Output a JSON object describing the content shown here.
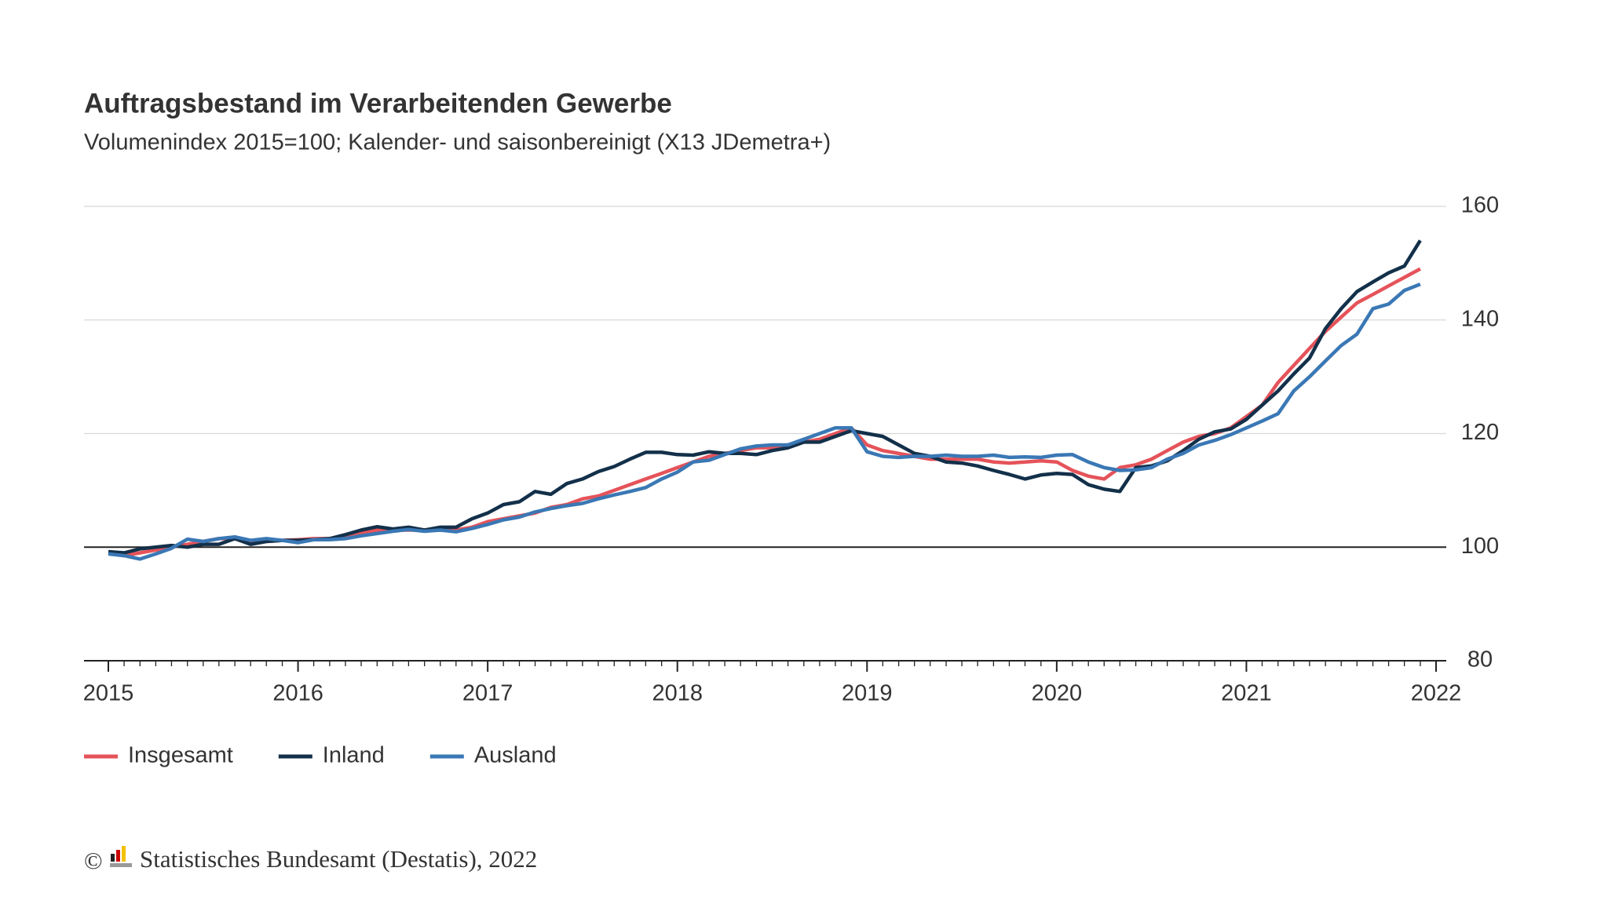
{
  "chart_data": {
    "type": "line",
    "title": "Auftragsbestand im Verarbeitenden Gewerbe",
    "subtitle": "Volumenindex 2015=100; Kalender- und saisonbereinigt (X13 JDemetra+)",
    "x": [
      2015,
      2015.083,
      2015.167,
      2015.25,
      2015.333,
      2015.417,
      2015.5,
      2015.583,
      2015.667,
      2015.75,
      2015.833,
      2015.917,
      2016,
      2016.083,
      2016.167,
      2016.25,
      2016.333,
      2016.417,
      2016.5,
      2016.583,
      2016.667,
      2016.75,
      2016.833,
      2016.917,
      2017,
      2017.083,
      2017.167,
      2017.25,
      2017.333,
      2017.417,
      2017.5,
      2017.583,
      2017.667,
      2017.75,
      2017.833,
      2017.917,
      2018,
      2018.083,
      2018.167,
      2018.25,
      2018.333,
      2018.417,
      2018.5,
      2018.583,
      2018.667,
      2018.75,
      2018.833,
      2018.917,
      2019,
      2019.083,
      2019.167,
      2019.25,
      2019.333,
      2019.417,
      2019.5,
      2019.583,
      2019.667,
      2019.75,
      2019.833,
      2019.917,
      2020,
      2020.083,
      2020.167,
      2020.25,
      2020.333,
      2020.417,
      2020.5,
      2020.583,
      2020.667,
      2020.75,
      2020.833,
      2020.917,
      2021,
      2021.083,
      2021.167,
      2021.25,
      2021.333,
      2021.417,
      2021.5,
      2021.583,
      2021.667,
      2021.75,
      2021.833,
      2021.917
    ],
    "series": [
      {
        "name": "Insgesamt",
        "color": "#e5535a",
        "values": [
          99,
          98.5,
          99,
          99.5,
          100,
          100.5,
          101,
          101.5,
          101.5,
          101,
          101,
          101.2,
          101.3,
          101.5,
          101.5,
          102,
          102.5,
          103,
          103,
          103,
          103,
          103,
          103,
          103.5,
          104.5,
          105,
          105.5,
          106,
          107,
          107.5,
          108.5,
          109,
          110,
          111,
          112,
          113,
          114,
          115,
          116,
          116.5,
          117,
          117.5,
          117.5,
          118,
          118.5,
          119,
          120,
          121,
          118,
          117,
          116.5,
          116,
          115.5,
          115.5,
          115.5,
          115.5,
          115,
          114.8,
          115,
          115.2,
          115,
          113.5,
          112.5,
          112,
          114,
          114.5,
          115.5,
          117,
          118.5,
          119.5,
          120,
          121,
          123,
          125,
          129,
          132,
          135,
          138,
          140.5,
          143,
          144.5,
          146,
          147.5,
          149
        ]
      },
      {
        "name": "Inland",
        "color": "#13304a",
        "values": [
          99.2,
          99,
          99.7,
          100,
          100.3,
          100,
          100.5,
          100.5,
          101.5,
          100.5,
          101,
          101.2,
          101.2,
          101.3,
          101.5,
          102.2,
          103,
          103.6,
          103.2,
          103.5,
          103,
          103.5,
          103.5,
          105,
          106,
          107.5,
          108,
          109.8,
          109.3,
          111.2,
          112,
          113.3,
          114.2,
          115.5,
          116.7,
          116.7,
          116.3,
          116.2,
          116.8,
          116.5,
          116.5,
          116.3,
          117,
          117.5,
          118.5,
          118.5,
          119.5,
          120.5,
          120,
          119.5,
          118,
          116.5,
          116,
          115,
          114.8,
          114.3,
          113.5,
          112.8,
          112,
          112.7,
          113,
          112.8,
          111,
          110.2,
          109.8,
          114,
          114.3,
          115.2,
          117,
          119,
          120.3,
          120.8,
          122.5,
          125,
          127.5,
          130.5,
          133.3,
          138.5,
          142,
          145,
          146.7,
          148.3,
          149.5,
          154
        ]
      },
      {
        "name": "Ausland",
        "color": "#3a78b5",
        "values": [
          98.8,
          98.5,
          97.9,
          98.8,
          99.8,
          101.4,
          101,
          101.5,
          101.8,
          101.2,
          101.5,
          101.2,
          100.8,
          101.3,
          101.3,
          101.5,
          102,
          102.4,
          102.8,
          103.1,
          102.8,
          103,
          102.7,
          103.3,
          104,
          104.8,
          105.3,
          106.2,
          106.8,
          107.3,
          107.7,
          108.5,
          109.2,
          109.8,
          110.5,
          112,
          113.2,
          115,
          115.3,
          116.3,
          117.3,
          117.8,
          118,
          118,
          119,
          120,
          121,
          121,
          116.8,
          116,
          115.8,
          116,
          116,
          116.2,
          116,
          116,
          116.2,
          115.8,
          115.9,
          115.8,
          116.2,
          116.3,
          115,
          114,
          113.5,
          113.6,
          114,
          115.5,
          116.5,
          118,
          118.8,
          119.8,
          121,
          122.2,
          123.5,
          127.5,
          130,
          132.8,
          135.5,
          137.5,
          142,
          142.8,
          145.2,
          146.3
        ]
      }
    ],
    "xlim": [
      2015,
      2022
    ],
    "xticks": [
      2015,
      2016,
      2017,
      2018,
      2019,
      2020,
      2021,
      2022
    ],
    "ylim": [
      80,
      160
    ],
    "yticks": [
      80,
      100,
      120,
      140,
      160
    ],
    "baseline": 100,
    "grid": true,
    "legend": "bottom-left",
    "copyright": "©",
    "source": "Statistisches Bundesamt (Destatis), 2022"
  }
}
